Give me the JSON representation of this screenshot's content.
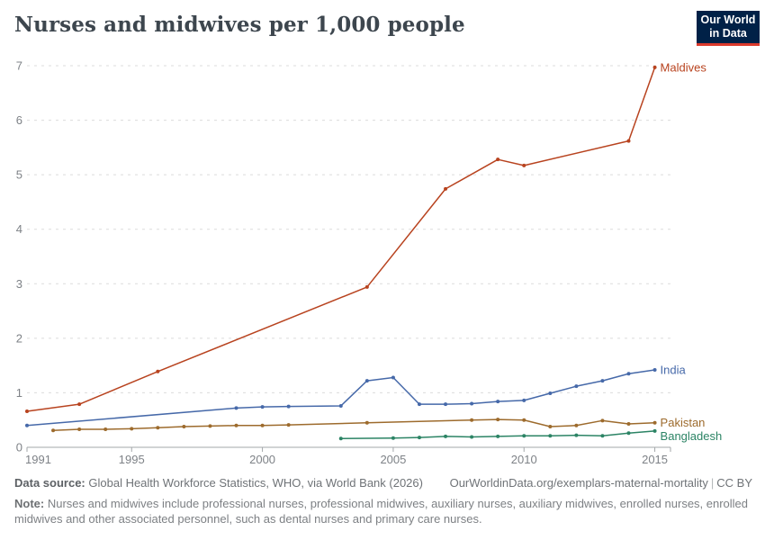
{
  "header": {
    "title": "Nurses and midwives per 1,000 people"
  },
  "logo": {
    "line1": "Our World",
    "line2": "in Data",
    "bg": "#002147",
    "accent": "#dc3a2c"
  },
  "chart_data": {
    "type": "line",
    "title": "Nurses and midwives per 1,000 people",
    "xlabel": "",
    "ylabel": "",
    "xlim": [
      1991,
      2015.6
    ],
    "ylim": [
      0,
      7
    ],
    "x_ticks": [
      1991,
      1995,
      2000,
      2005,
      2010,
      2015
    ],
    "y_ticks": [
      0,
      1,
      2,
      3,
      4,
      5,
      6,
      7
    ],
    "grid": "dashed-horizontal",
    "legend_position": "end-of-line-labels",
    "series": [
      {
        "name": "Maldives",
        "color": "#b8431f",
        "points": [
          [
            1991,
            0.66
          ],
          [
            1993,
            0.79
          ],
          [
            1996,
            1.39
          ],
          [
            2004,
            2.94
          ],
          [
            2007,
            4.74
          ],
          [
            2009,
            5.28
          ],
          [
            2010,
            5.17
          ],
          [
            2014,
            5.62
          ],
          [
            2015,
            6.97
          ]
        ]
      },
      {
        "name": "India",
        "color": "#4669a9",
        "points": [
          [
            1991,
            0.4
          ],
          [
            1999,
            0.72
          ],
          [
            2000,
            0.74
          ],
          [
            2001,
            0.75
          ],
          [
            2003,
            0.76
          ],
          [
            2004,
            1.22
          ],
          [
            2005,
            1.28
          ],
          [
            2006,
            0.79
          ],
          [
            2007,
            0.79
          ],
          [
            2008,
            0.8
          ],
          [
            2009,
            0.84
          ],
          [
            2010,
            0.86
          ],
          [
            2011,
            0.99
          ],
          [
            2012,
            1.12
          ],
          [
            2013,
            1.22
          ],
          [
            2014,
            1.35
          ],
          [
            2015,
            1.42
          ]
        ]
      },
      {
        "name": "Pakistan",
        "color": "#9d6b2d",
        "points": [
          [
            1992,
            0.31
          ],
          [
            1993,
            0.33
          ],
          [
            1994,
            0.33
          ],
          [
            1995,
            0.34
          ],
          [
            1996,
            0.36
          ],
          [
            1997,
            0.38
          ],
          [
            1998,
            0.39
          ],
          [
            1999,
            0.4
          ],
          [
            2000,
            0.4
          ],
          [
            2001,
            0.41
          ],
          [
            2004,
            0.45
          ],
          [
            2008,
            0.5
          ],
          [
            2009,
            0.51
          ],
          [
            2010,
            0.5
          ],
          [
            2011,
            0.38
          ],
          [
            2012,
            0.4
          ],
          [
            2013,
            0.49
          ],
          [
            2014,
            0.43
          ],
          [
            2015,
            0.45
          ]
        ]
      },
      {
        "name": "Bangladesh",
        "color": "#2c8465",
        "points": [
          [
            2003,
            0.16
          ],
          [
            2005,
            0.17
          ],
          [
            2006,
            0.18
          ],
          [
            2007,
            0.2
          ],
          [
            2008,
            0.19
          ],
          [
            2009,
            0.2
          ],
          [
            2010,
            0.21
          ],
          [
            2011,
            0.21
          ],
          [
            2012,
            0.22
          ],
          [
            2013,
            0.21
          ],
          [
            2014,
            0.26
          ],
          [
            2015,
            0.3
          ]
        ]
      }
    ]
  },
  "footer": {
    "source_label": "Data source:",
    "source_text": "Global Health Workforce Statistics, WHO, via World Bank (2026)",
    "link": "OurWorldinData.org/exemplars-maternal-mortality",
    "separator": "|",
    "license": "CC BY",
    "note_label": "Note:",
    "note_text": "Nurses and midwives include professional nurses, professional midwives, auxiliary nurses, auxiliary midwives, enrolled nurses, enrolled midwives and other associated personnel, such as dental nurses and primary care nurses."
  },
  "colors": {
    "title": "#3d464e",
    "grid": "#dcdcdc",
    "axis": "#a3a7aa",
    "tick_text": "#7e8287"
  }
}
